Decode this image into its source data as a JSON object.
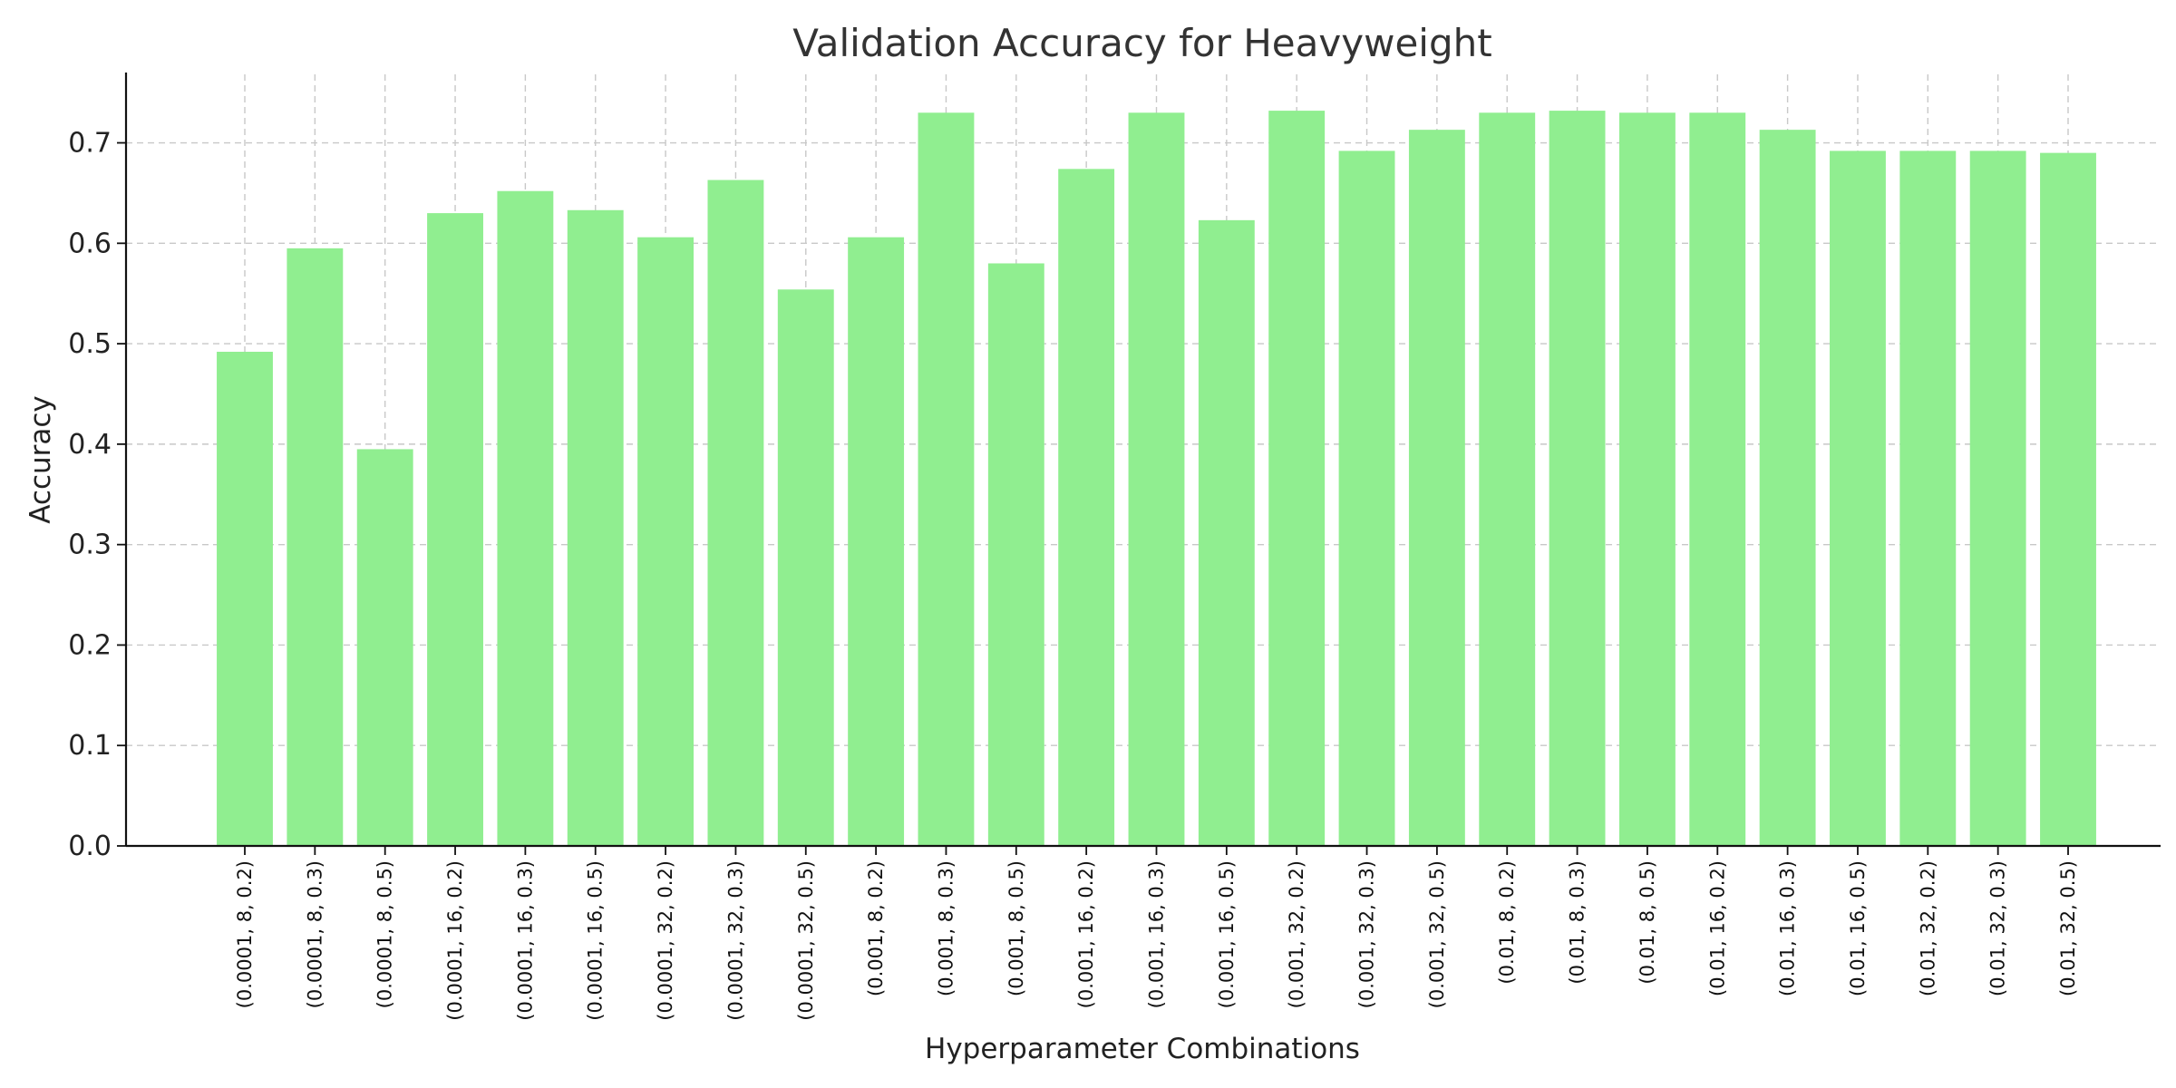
{
  "chart_data": {
    "type": "bar",
    "title": "Validation Accuracy for Heavyweight",
    "xlabel": "Hyperparameter Combinations",
    "ylabel": "Accuracy",
    "ylim": [
      0,
      0.77
    ],
    "yticks": [
      "0.0",
      "0.1",
      "0.2",
      "0.3",
      "0.4",
      "0.5",
      "0.6",
      "0.7"
    ],
    "grid": true,
    "bar_color": "#90ee90",
    "categories": [
      "(0.0001, 8, 0.2)",
      "(0.0001, 8, 0.3)",
      "(0.0001, 8, 0.5)",
      "(0.0001, 16, 0.2)",
      "(0.0001, 16, 0.3)",
      "(0.0001, 16, 0.5)",
      "(0.0001, 32, 0.2)",
      "(0.0001, 32, 0.3)",
      "(0.0001, 32, 0.5)",
      "(0.001, 8, 0.2)",
      "(0.001, 8, 0.3)",
      "(0.001, 8, 0.5)",
      "(0.001, 16, 0.2)",
      "(0.001, 16, 0.3)",
      "(0.001, 16, 0.5)",
      "(0.001, 32, 0.2)",
      "(0.001, 32, 0.3)",
      "(0.001, 32, 0.5)",
      "(0.01, 8, 0.2)",
      "(0.01, 8, 0.3)",
      "(0.01, 8, 0.5)",
      "(0.01, 16, 0.2)",
      "(0.01, 16, 0.3)",
      "(0.01, 16, 0.5)",
      "(0.01, 32, 0.2)",
      "(0.01, 32, 0.3)",
      "(0.01, 32, 0.5)"
    ],
    "values": [
      0.492,
      0.595,
      0.395,
      0.63,
      0.652,
      0.633,
      0.606,
      0.663,
      0.554,
      0.606,
      0.73,
      0.58,
      0.674,
      0.73,
      0.623,
      0.732,
      0.692,
      0.713,
      0.73,
      0.732,
      0.73,
      0.73,
      0.713,
      0.692,
      0.692,
      0.692,
      0.69
    ]
  }
}
